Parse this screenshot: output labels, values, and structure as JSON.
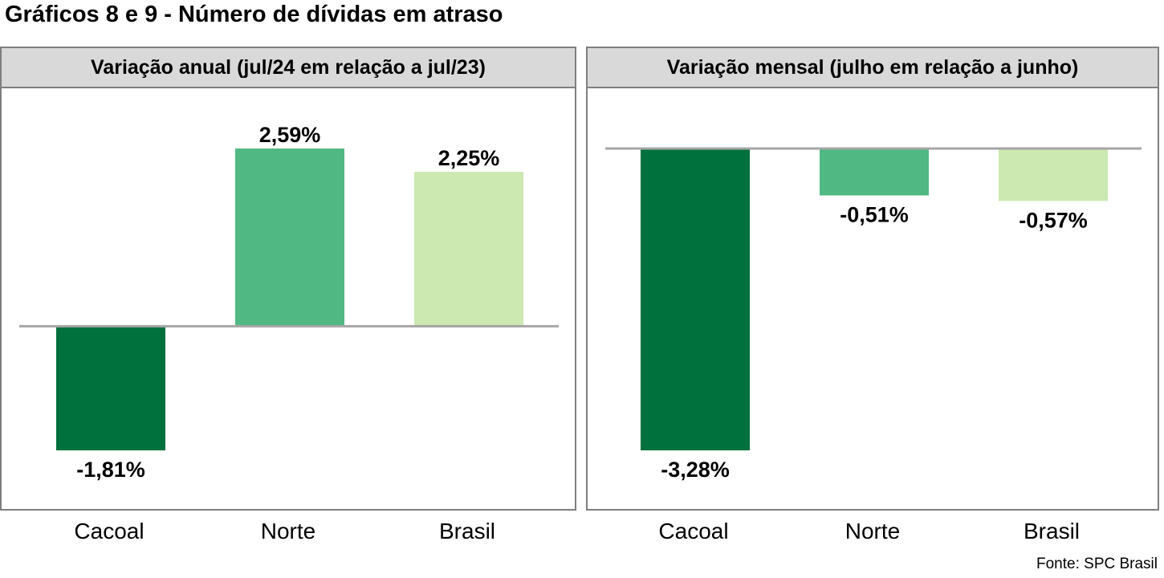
{
  "title": "Gráficos 8 e 9 - Número de dívidas em atraso",
  "source": "Fonte: SPC Brasil",
  "colors": {
    "Cacoal": "#00703c",
    "Norte": "#50b882",
    "Brasil": "#cbe9b0",
    "baseline": "#a6a6a6"
  },
  "chart_data": [
    {
      "type": "bar",
      "title": "Variação anual (jul/24 em relação a jul/23)",
      "categories": [
        "Cacoal",
        "Norte",
        "Brasil"
      ],
      "values": [
        -1.81,
        2.59,
        2.25
      ],
      "labels": [
        "-1,81%",
        "2,59%",
        "2,25%"
      ],
      "ylim": [
        -1.81,
        2.59
      ]
    },
    {
      "type": "bar",
      "title": "Variação mensal (julho em relação a junho)",
      "categories": [
        "Cacoal",
        "Norte",
        "Brasil"
      ],
      "values": [
        -3.28,
        -0.51,
        -0.57
      ],
      "labels": [
        "-3,28%",
        "-0,51%",
        "-0,57%"
      ],
      "ylim": [
        -3.28,
        0
      ]
    }
  ]
}
